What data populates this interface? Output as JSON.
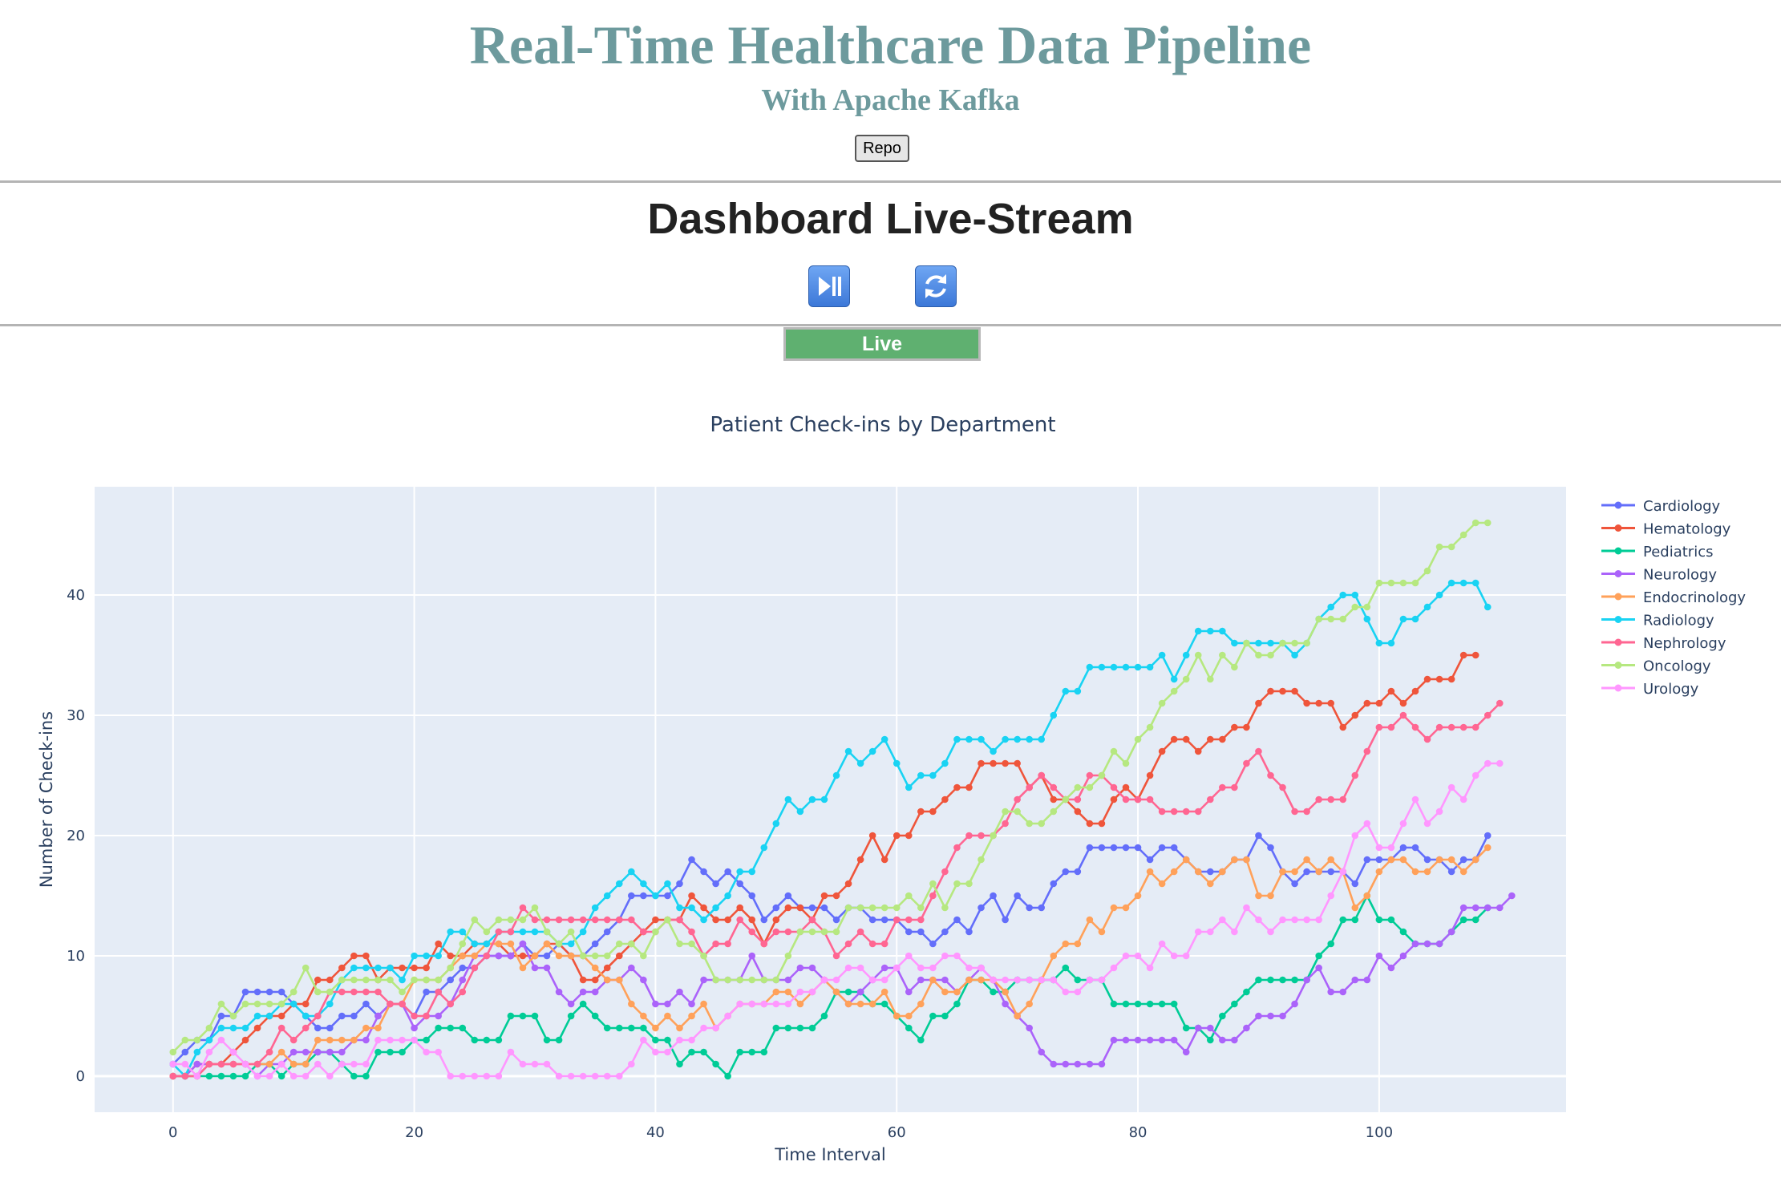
{
  "header": {
    "title": "Real-Time Healthcare Data Pipeline",
    "subtitle": "With Apache Kafka",
    "repo_label": "Repo"
  },
  "dashboard": {
    "title": "Dashboard Live-Stream",
    "play_pause_icon": "play-pause-icon",
    "refresh_icon": "refresh-icon",
    "status_label": "Live",
    "status_color": "#5fb070"
  },
  "chart_data": {
    "type": "line",
    "title": "Patient Check-ins by Department",
    "xlabel": "Time Interval",
    "ylabel": "Number of Check-ins",
    "xlim": [
      -6.5,
      115.5
    ],
    "ylim": [
      -3,
      49
    ],
    "xticks": [
      0,
      20,
      40,
      60,
      80,
      100
    ],
    "yticks": [
      0,
      10,
      20,
      30,
      40
    ],
    "grid": true,
    "legend_position": "top-right",
    "plot_bgcolor": "#e5ecf6",
    "series": [
      {
        "name": "Cardiology",
        "color": "#636efa",
        "values": [
          1,
          2,
          3,
          3,
          5,
          5,
          7,
          7,
          7,
          7,
          6,
          5,
          4,
          4,
          5,
          5,
          6,
          5,
          6,
          6,
          5,
          7,
          7,
          8,
          9,
          9,
          10,
          10,
          10,
          11,
          10,
          10,
          11,
          10,
          10,
          11,
          12,
          13,
          15,
          15,
          15,
          15,
          16,
          18,
          17,
          16,
          17,
          16,
          15,
          13,
          14,
          15,
          14,
          14,
          14,
          13,
          14,
          14,
          13,
          13,
          13,
          12,
          12,
          11,
          12,
          13,
          12,
          14,
          15,
          13,
          15,
          14,
          14,
          16,
          17,
          17,
          19,
          19,
          19,
          19,
          19,
          18,
          19,
          19,
          18,
          17,
          17,
          17,
          18,
          18,
          20,
          19,
          17,
          16,
          17,
          17,
          17,
          17,
          16,
          18,
          18,
          18,
          19,
          19,
          18,
          18,
          17,
          18,
          18,
          20
        ]
      },
      {
        "name": "Hematology",
        "color": "#EF553B",
        "values": [
          0,
          0,
          1,
          1,
          1,
          2,
          3,
          4,
          5,
          5,
          6,
          6,
          8,
          8,
          9,
          10,
          10,
          8,
          9,
          9,
          9,
          9,
          11,
          10,
          10,
          11,
          11,
          11,
          10,
          10,
          10,
          11,
          11,
          10,
          8,
          8,
          9,
          10,
          11,
          12,
          13,
          13,
          13,
          15,
          14,
          13,
          13,
          14,
          13,
          11,
          13,
          14,
          14,
          13,
          15,
          15,
          16,
          18,
          20,
          18,
          20,
          20,
          22,
          22,
          23,
          24,
          24,
          26,
          26,
          26,
          26,
          24,
          25,
          23,
          23,
          22,
          21,
          21,
          23,
          24,
          23,
          25,
          27,
          28,
          28,
          27,
          28,
          28,
          29,
          29,
          31,
          32,
          32,
          32,
          31,
          31,
          31,
          29,
          30,
          31,
          31,
          32,
          31,
          32,
          33,
          33,
          33,
          35,
          35
        ]
      },
      {
        "name": "Pediatrics",
        "color": "#00cc96",
        "values": [
          0,
          0,
          0,
          0,
          0,
          0,
          0,
          1,
          1,
          0,
          1,
          1,
          2,
          2,
          1,
          0,
          0,
          2,
          2,
          2,
          3,
          3,
          4,
          4,
          4,
          3,
          3,
          3,
          5,
          5,
          5,
          3,
          3,
          5,
          6,
          5,
          4,
          4,
          4,
          4,
          3,
          3,
          1,
          2,
          2,
          1,
          0,
          2,
          2,
          2,
          4,
          4,
          4,
          4,
          5,
          7,
          7,
          7,
          6,
          6,
          5,
          4,
          3,
          5,
          5,
          6,
          8,
          8,
          7,
          7,
          8,
          8,
          8,
          8,
          9,
          8,
          8,
          8,
          6,
          6,
          6,
          6,
          6,
          6,
          4,
          4,
          3,
          5,
          6,
          7,
          8,
          8,
          8,
          8,
          8,
          10,
          11,
          13,
          13,
          15,
          13,
          13,
          12,
          11,
          11,
          11,
          12,
          13,
          13,
          14
        ]
      },
      {
        "name": "Neurology",
        "color": "#ab63fa",
        "values": [
          0,
          0,
          1,
          1,
          1,
          1,
          1,
          0,
          1,
          1,
          2,
          2,
          2,
          2,
          2,
          3,
          3,
          5,
          6,
          6,
          4,
          5,
          5,
          6,
          8,
          10,
          10,
          10,
          10,
          11,
          9,
          9,
          7,
          6,
          7,
          7,
          8,
          8,
          9,
          8,
          6,
          6,
          7,
          6,
          8,
          8,
          8,
          8,
          10,
          8,
          8,
          8,
          9,
          9,
          8,
          7,
          6,
          7,
          8,
          9,
          9,
          7,
          8,
          8,
          8,
          7,
          8,
          9,
          8,
          6,
          5,
          4,
          2,
          1,
          1,
          1,
          1,
          1,
          3,
          3,
          3,
          3,
          3,
          3,
          2,
          4,
          4,
          3,
          3,
          4,
          5,
          5,
          5,
          6,
          8,
          9,
          7,
          7,
          8,
          8,
          10,
          9,
          10,
          11,
          11,
          11,
          12,
          14,
          14,
          14,
          14,
          15
        ]
      },
      {
        "name": "Endocrinology",
        "color": "#FFA15A",
        "values": [
          0,
          0,
          0,
          1,
          1,
          1,
          1,
          1,
          1,
          2,
          1,
          1,
          3,
          3,
          3,
          3,
          4,
          4,
          6,
          6,
          8,
          8,
          8,
          9,
          10,
          10,
          11,
          11,
          11,
          9,
          10,
          11,
          10,
          10,
          10,
          9,
          8,
          8,
          6,
          5,
          4,
          5,
          4,
          5,
          6,
          4,
          5,
          6,
          6,
          6,
          7,
          7,
          6,
          7,
          8,
          7,
          6,
          6,
          6,
          7,
          5,
          5,
          6,
          8,
          7,
          7,
          8,
          8,
          8,
          7,
          5,
          6,
          8,
          10,
          11,
          11,
          13,
          12,
          14,
          14,
          15,
          17,
          16,
          17,
          18,
          17,
          16,
          17,
          18,
          18,
          15,
          15,
          17,
          17,
          18,
          17,
          18,
          17,
          14,
          15,
          17,
          18,
          18,
          17,
          17,
          18,
          18,
          17,
          18,
          19
        ]
      },
      {
        "name": "Radiology",
        "color": "#19d3f3",
        "values": [
          1,
          0,
          2,
          3,
          4,
          4,
          4,
          5,
          5,
          6,
          6,
          5,
          5,
          6,
          8,
          9,
          9,
          9,
          9,
          8,
          10,
          10,
          10,
          12,
          12,
          11,
          11,
          12,
          12,
          12,
          12,
          12,
          11,
          11,
          12,
          14,
          15,
          16,
          17,
          16,
          15,
          16,
          14,
          14,
          13,
          14,
          15,
          17,
          17,
          19,
          21,
          23,
          22,
          23,
          23,
          25,
          27,
          26,
          27,
          28,
          26,
          24,
          25,
          25,
          26,
          28,
          28,
          28,
          27,
          28,
          28,
          28,
          28,
          30,
          32,
          32,
          34,
          34,
          34,
          34,
          34,
          34,
          35,
          33,
          35,
          37,
          37,
          37,
          36,
          36,
          36,
          36,
          36,
          35,
          36,
          38,
          39,
          40,
          40,
          38,
          36,
          36,
          38,
          38,
          39,
          40,
          41,
          41,
          41,
          39
        ]
      },
      {
        "name": "Nephrology",
        "color": "#FF6692",
        "values": [
          0,
          0,
          0,
          1,
          1,
          1,
          1,
          1,
          2,
          4,
          3,
          4,
          5,
          7,
          7,
          7,
          7,
          7,
          6,
          6,
          5,
          5,
          7,
          6,
          7,
          9,
          10,
          12,
          12,
          14,
          13,
          13,
          13,
          13,
          13,
          13,
          13,
          13,
          13,
          12,
          12,
          13,
          13,
          12,
          10,
          11,
          11,
          13,
          12,
          11,
          12,
          12,
          12,
          13,
          12,
          10,
          11,
          12,
          11,
          11,
          13,
          13,
          13,
          15,
          17,
          19,
          20,
          20,
          20,
          21,
          23,
          24,
          25,
          24,
          23,
          23,
          25,
          25,
          24,
          23,
          23,
          23,
          22,
          22,
          22,
          22,
          23,
          24,
          24,
          26,
          27,
          25,
          24,
          22,
          22,
          23,
          23,
          23,
          25,
          27,
          29,
          29,
          30,
          29,
          28,
          29,
          29,
          29,
          29,
          30,
          31
        ]
      },
      {
        "name": "Oncology",
        "color": "#B6E880",
        "values": [
          2,
          3,
          3,
          4,
          6,
          5,
          6,
          6,
          6,
          6,
          7,
          9,
          7,
          7,
          8,
          8,
          8,
          8,
          8,
          7,
          8,
          8,
          8,
          9,
          11,
          13,
          12,
          13,
          13,
          13,
          14,
          12,
          11,
          12,
          10,
          10,
          10,
          11,
          11,
          10,
          12,
          13,
          11,
          11,
          10,
          8,
          8,
          8,
          8,
          8,
          8,
          10,
          12,
          12,
          12,
          12,
          14,
          14,
          14,
          14,
          14,
          15,
          14,
          16,
          14,
          16,
          16,
          18,
          20,
          22,
          22,
          21,
          21,
          22,
          23,
          24,
          24,
          25,
          27,
          26,
          28,
          29,
          31,
          32,
          33,
          35,
          33,
          35,
          34,
          36,
          35,
          35,
          36,
          36,
          36,
          38,
          38,
          38,
          39,
          39,
          41,
          41,
          41,
          41,
          42,
          44,
          44,
          45,
          46,
          46
        ]
      },
      {
        "name": "Urology",
        "color": "#FF97FF",
        "values": [
          1,
          1,
          0,
          2,
          3,
          2,
          1,
          0,
          0,
          1,
          0,
          0,
          1,
          0,
          1,
          1,
          1,
          3,
          3,
          3,
          3,
          2,
          2,
          0,
          0,
          0,
          0,
          0,
          2,
          1,
          1,
          1,
          0,
          0,
          0,
          0,
          0,
          0,
          1,
          3,
          2,
          2,
          3,
          3,
          4,
          4,
          5,
          6,
          6,
          6,
          6,
          6,
          7,
          7,
          8,
          8,
          9,
          9,
          8,
          8,
          9,
          10,
          9,
          9,
          10,
          10,
          9,
          9,
          8,
          8,
          8,
          8,
          8,
          8,
          7,
          7,
          8,
          8,
          9,
          10,
          10,
          9,
          11,
          10,
          10,
          12,
          12,
          13,
          12,
          14,
          13,
          12,
          13,
          13,
          13,
          13,
          15,
          17,
          20,
          21,
          19,
          19,
          21,
          23,
          21,
          22,
          24,
          23,
          25,
          26,
          26
        ]
      }
    ]
  }
}
